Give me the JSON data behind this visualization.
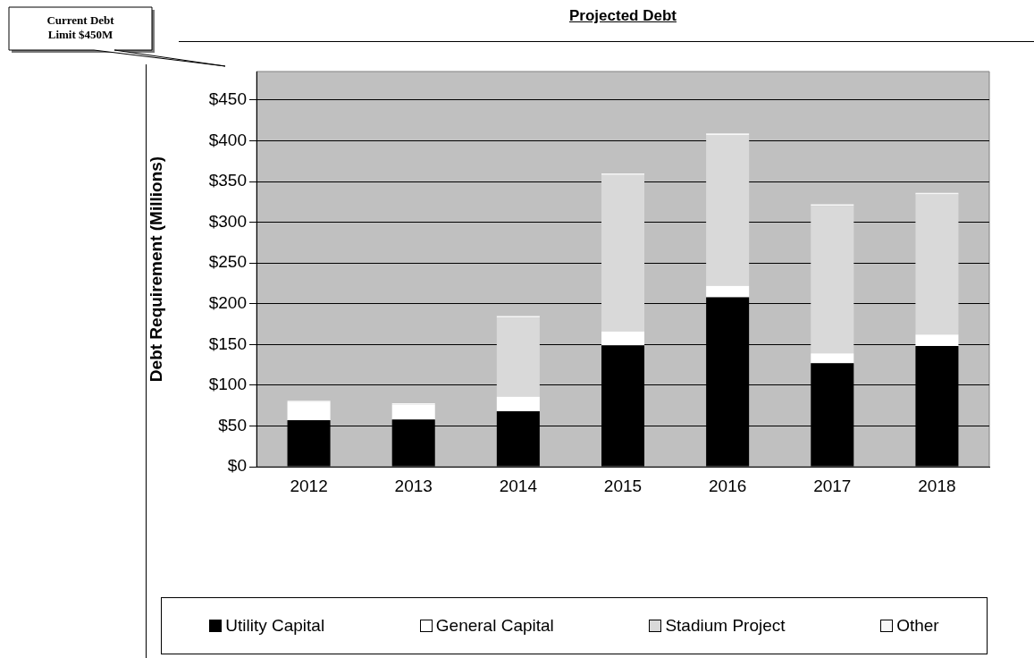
{
  "chart_data": {
    "type": "bar",
    "title": "Projected Debt",
    "ylabel": "Debt Requirement (Millions)",
    "categories": [
      "2012",
      "2013",
      "2014",
      "2015",
      "2016",
      "2017",
      "2018"
    ],
    "stacked": true,
    "series": [
      {
        "name": "Utility Capital",
        "color": "#000000",
        "values": [
          57,
          58,
          68,
          149,
          208,
          127,
          148
        ]
      },
      {
        "name": "General Capital",
        "color": "#ffffff",
        "values": [
          22,
          18,
          18,
          17,
          14,
          12,
          14
        ]
      },
      {
        "name": "Stadium Project",
        "color": "#d9d9d9",
        "values": [
          0,
          0,
          97,
          192,
          185,
          181,
          172
        ]
      },
      {
        "name": "Other",
        "color": "#f7f7f7",
        "values": [
          2,
          2,
          2,
          2,
          2,
          2,
          2
        ]
      }
    ],
    "ylim": [
      0,
      485
    ],
    "yticks": [
      {
        "value": 0,
        "label": "$0"
      },
      {
        "value": 50,
        "label": "$50"
      },
      {
        "value": 100,
        "label": "$100"
      },
      {
        "value": 150,
        "label": "$150"
      },
      {
        "value": 200,
        "label": "$200"
      },
      {
        "value": 250,
        "label": "$250"
      },
      {
        "value": 300,
        "label": "$300"
      },
      {
        "value": 350,
        "label": "$350"
      },
      {
        "value": 400,
        "label": "$400"
      },
      {
        "value": 450,
        "label": "$450"
      }
    ],
    "grid": "y",
    "legend": "bottom",
    "annotations": [
      "Current Debt Limit $450M"
    ]
  }
}
